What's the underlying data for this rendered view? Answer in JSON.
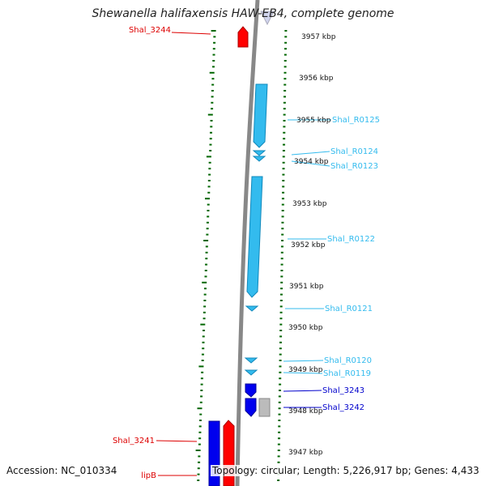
{
  "title": "Shewanella halifaxensis HAW-EB4, complete genome",
  "footer": {
    "accession": "Accession: NC_010334",
    "summary": "Topology: circular; Length: 5,226,917 bp; Genes: 4,433"
  },
  "colors": {
    "forward_gene": "#ff0000",
    "reverse_gene": "#0000ee",
    "rna": "#33bbee",
    "pseudo": "#bbbbbb",
    "tick": "#006600",
    "backbone": "#888888"
  },
  "ticks": [
    "3957 kbp",
    "3956 kbp",
    "3955 kbp",
    "3954 kbp",
    "3953 kbp",
    "3952 kbp",
    "3951 kbp",
    "3950 kbp",
    "3949 kbp",
    "3948 kbp",
    "3947 kbp"
  ],
  "gene_labels": [
    {
      "name": "Shal_3244",
      "color": "#dd0000"
    },
    {
      "name": "Shal_R0125",
      "color": "#33bbee"
    },
    {
      "name": "Shal_R0124",
      "color": "#33bbee"
    },
    {
      "name": "Shal_R0123",
      "color": "#33bbee"
    },
    {
      "name": "Shal_R0122",
      "color": "#33bbee"
    },
    {
      "name": "Shal_R0121",
      "color": "#33bbee"
    },
    {
      "name": "Shal_R0120",
      "color": "#33bbee"
    },
    {
      "name": "Shal_R0119",
      "color": "#33bbee"
    },
    {
      "name": "Shal_3243",
      "color": "#0000cc"
    },
    {
      "name": "Shal_3242",
      "color": "#0000cc"
    },
    {
      "name": "Shal_3241",
      "color": "#dd0000"
    },
    {
      "name": "lipB",
      "color": "#dd0000"
    }
  ]
}
